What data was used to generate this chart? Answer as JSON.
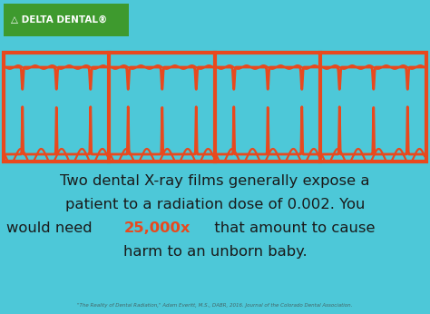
{
  "bg_color": "#4DC8D8",
  "orange_color": "#E8491E",
  "dark_text_color": "#1a1a1a",
  "logo_bg_color": "#3e9a2e",
  "logo_text": "△ DELTA DENTAL®",
  "main_text_line1": "Two dental X-ray films generally expose a",
  "main_text_line2": "patient to a radiation dose of 0.002. You",
  "main_text_line3_pre": "would need ",
  "highlight_text": "25,000x",
  "main_text_line3_post": " that amount to cause",
  "main_text_line4": "harm to an unborn baby.",
  "citation": "\"The Reality of Dental Radiation,\" Adam Everitt, M.S., DABR, 2016. Journal of the Colorado Dental Association.",
  "num_xray_panels": 4,
  "figsize": [
    4.74,
    3.46
  ],
  "dpi": 100
}
